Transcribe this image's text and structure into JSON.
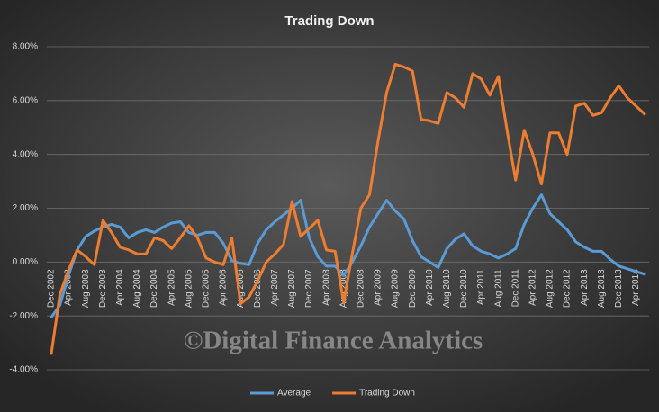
{
  "chart_data": {
    "type": "line",
    "title": "Trading  Down",
    "annotation": "©Digital Finance Analytics",
    "categories": [
      "Dec 2002",
      null,
      "Apr 2003",
      null,
      "Aug 2003",
      null,
      "Dec 2003",
      null,
      "Apr 2004",
      null,
      "Aug 2004",
      null,
      "Dec 2004",
      null,
      "Apr 2005",
      null,
      "Aug 2005",
      null,
      "Dec 2005",
      null,
      "Apr 2006",
      null,
      "Aug 2006",
      null,
      "Dec 2006",
      null,
      "Apr 2007",
      null,
      "Aug 2007",
      null,
      "Dec 2007",
      null,
      "Apr 2008",
      null,
      "Aug 2008",
      null,
      "Dec 2008",
      null,
      "Apr 2009",
      null,
      "Aug 2009",
      null,
      "Dec 2009",
      null,
      "Apr 2010",
      null,
      "Aug 2010",
      null,
      "Dec 2010",
      null,
      "Apr 2011",
      null,
      "Aug 2011",
      null,
      "Dec 2011",
      null,
      "Apr 2012",
      null,
      "Aug 2012",
      null,
      "Dec 2012",
      null,
      "Apr 2013",
      null,
      "Aug 2013",
      null,
      "Dec 2013",
      null,
      "Apr 2014",
      null
    ],
    "series": [
      {
        "name": "Average",
        "color": "#5b9bd5",
        "values": [
          -2.05,
          -1.6,
          -0.5,
          0.45,
          0.95,
          1.15,
          1.3,
          1.4,
          1.3,
          0.9,
          1.1,
          1.2,
          1.1,
          1.3,
          1.45,
          1.5,
          1.1,
          1.0,
          1.1,
          1.1,
          0.7,
          0.05,
          -0.05,
          -0.1,
          0.7,
          1.2,
          1.5,
          1.75,
          2.0,
          2.3,
          0.9,
          0.2,
          -0.15,
          -0.15,
          -0.5,
          0.0,
          0.6,
          1.3,
          1.8,
          2.3,
          1.9,
          1.6,
          0.8,
          0.2,
          0.0,
          -0.2,
          0.5,
          0.85,
          1.05,
          0.6,
          0.4,
          0.3,
          0.15,
          0.3,
          0.5,
          1.4,
          2.0,
          2.5,
          1.8,
          1.5,
          1.2,
          0.75,
          0.55,
          0.4,
          0.4,
          0.1,
          -0.15,
          -0.25,
          -0.35,
          -0.45
        ]
      },
      {
        "name": "Trading Down",
        "color": "#ed7d31",
        "values": [
          -3.4,
          -1.2,
          -0.3,
          0.45,
          0.2,
          -0.1,
          1.55,
          1.1,
          0.55,
          0.45,
          0.3,
          0.3,
          0.9,
          0.8,
          0.5,
          0.9,
          1.35,
          0.9,
          0.15,
          0.0,
          -0.1,
          0.9,
          -1.55,
          -1.3,
          -0.7,
          0.0,
          0.3,
          0.65,
          2.25,
          0.95,
          1.25,
          1.55,
          0.45,
          0.4,
          -1.5,
          0.3,
          2.0,
          2.5,
          4.5,
          6.3,
          7.35,
          7.25,
          7.1,
          5.3,
          5.25,
          5.15,
          6.3,
          6.1,
          5.75,
          7.0,
          6.8,
          6.2,
          6.9,
          4.9,
          3.05,
          4.9,
          4.0,
          2.9,
          4.8,
          4.8,
          4.0,
          5.8,
          5.9,
          5.45,
          5.55,
          6.1,
          6.55,
          6.1,
          5.8,
          5.5
        ]
      }
    ],
    "ylim": [
      -4,
      8
    ],
    "yticks": [
      {
        "value": -4,
        "label": "-4.00%"
      },
      {
        "value": -2,
        "label": "-2.00%"
      },
      {
        "value": 0,
        "label": "0.00%"
      },
      {
        "value": 2,
        "label": "2.00%"
      },
      {
        "value": 4,
        "label": "4.00%"
      },
      {
        "value": 6,
        "label": "6.00%"
      },
      {
        "value": 8,
        "label": "8.00%"
      }
    ],
    "grid": true,
    "legend": "bottom"
  }
}
